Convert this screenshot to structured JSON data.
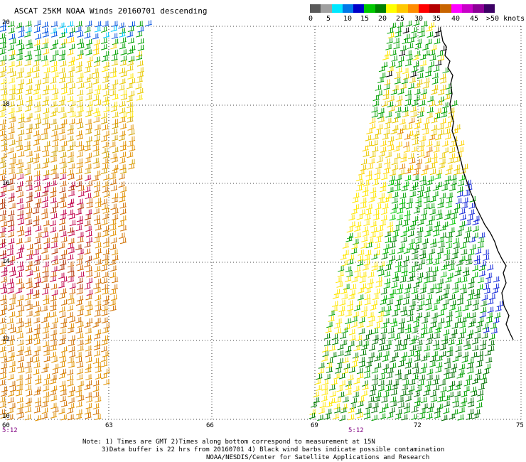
{
  "title": "ASCAT 25KM NOAA Winds 20160701 descending",
  "legend": {
    "colors": [
      "#5a5a5a",
      "#a0a0a0",
      "#00e8ff",
      "#0078e8",
      "#0000c8",
      "#00c800",
      "#008000",
      "#ffff00",
      "#ffc800",
      "#ff8c00",
      "#ff0000",
      "#b40000",
      "#c86400",
      "#ff00ff",
      "#c800c8",
      "#8c0096",
      "#3c0064"
    ],
    "labels": [
      "0",
      "5",
      "10",
      "15",
      "20",
      "25",
      "30",
      "35",
      "40",
      "45",
      ">50 knots"
    ]
  },
  "axes": {
    "x_ticks": [
      "60",
      "63",
      "66",
      "69",
      "72",
      "75"
    ],
    "y_ticks": [
      "20",
      "18",
      "16",
      "14",
      "12",
      "10"
    ]
  },
  "timestamps": [
    "5:12",
    "5:12"
  ],
  "notes": [
    "Note: 1) Times are GMT 2)Times along bottom correspond to measurement at 15N",
    "3)Data buffer is 22 hrs from 20160701 4) Black wind barbs indicate possible contamination",
    "NOAA/NESDIS/Center for Satellite Applications and Research"
  ],
  "colors": {
    "grid": "#000000",
    "coast": "#000000",
    "ts": "#800080"
  }
}
